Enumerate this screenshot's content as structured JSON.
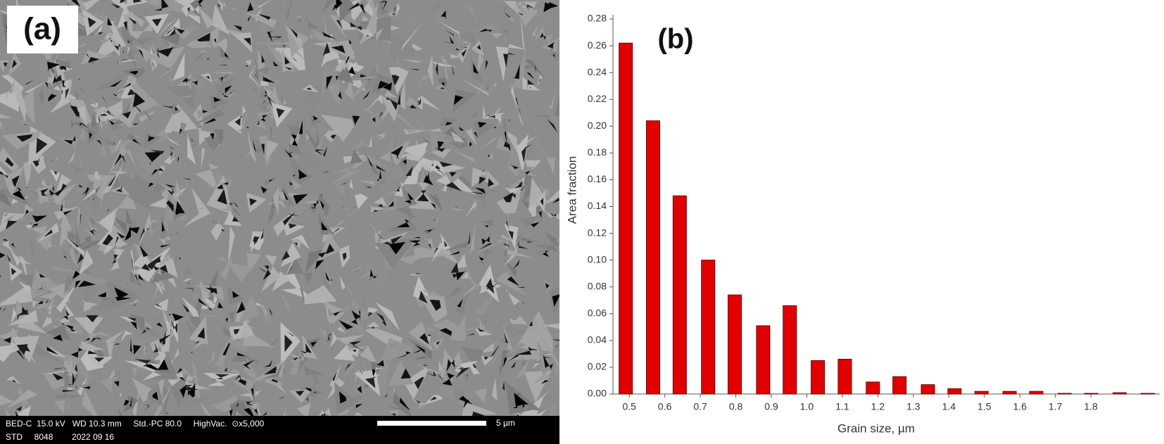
{
  "panel_a": {
    "label": "(a)",
    "info_line_1": "BED-C  15.0 kV   WD 10.3 mm     Std.-PC 80.0     HighVac.  ⊙x5,000",
    "info_line_2": "STD     8048        2022 09 16",
    "scale_bar": "5 µm"
  },
  "chart_data": {
    "type": "bar",
    "title": "(b)",
    "x_label": "Grain size, µm",
    "y_label": "Area fraction",
    "color": "#e00000",
    "x": [
      0.49,
      0.567,
      0.642,
      0.722,
      0.797,
      0.877,
      0.952,
      1.031,
      1.107,
      1.186,
      1.261,
      1.341,
      1.416,
      1.492,
      1.571,
      1.646,
      1.726,
      1.801,
      1.881,
      1.96
    ],
    "values": [
      0.262,
      0.204,
      0.148,
      0.1,
      0.074,
      0.051,
      0.066,
      0.025,
      0.026,
      0.009,
      0.013,
      0.007,
      0.004,
      0.002,
      0.002,
      0.002,
      0.0005,
      0.0005,
      0.001,
      0.0005
    ],
    "xlim": [
      0.454,
      1.994
    ],
    "xticks": [
      0.5,
      0.6,
      0.7,
      0.8,
      0.9,
      {
        "value": 1,
        "label": "1.0"
      },
      1.1,
      1.2,
      1.3,
      1.4,
      1.5,
      1.6,
      1.7,
      1.8
    ],
    "ylim": [
      0,
      0.28
    ],
    "yticks": [
      {
        "value": 0,
        "label": "0.00"
      },
      {
        "value": 0.02,
        "label": "0.02"
      },
      {
        "value": 0.04,
        "label": "0.04"
      },
      {
        "value": 0.06,
        "label": "0.06"
      },
      {
        "value": 0.08,
        "label": "0.08"
      },
      {
        "value": 0.1,
        "label": "0.10"
      },
      {
        "value": 0.12,
        "label": "0.12"
      },
      {
        "value": 0.14,
        "label": "0.14"
      },
      {
        "value": 0.16,
        "label": "0.16"
      },
      {
        "value": 0.18,
        "label": "0.18"
      },
      {
        "value": 0.2,
        "label": "0.20"
      },
      {
        "value": 0.22,
        "label": "0.22"
      },
      {
        "value": 0.24,
        "label": "0.24"
      },
      {
        "value": 0.26,
        "label": "0.26"
      },
      {
        "value": 0.28,
        "label": "0.28"
      }
    ],
    "grid": false
  }
}
